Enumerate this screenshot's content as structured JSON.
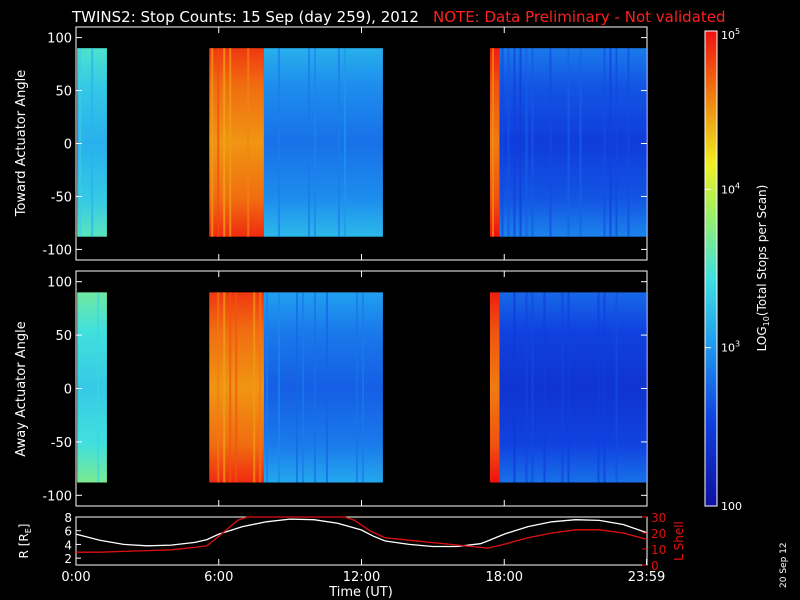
{
  "title": "TWINS2: Stop Counts: 15 Sep (day 259), 2012",
  "note": "NOTE: Data Preliminary - Not validated",
  "datestamp": "20 Sep 12",
  "colors": {
    "background": "#000000",
    "text": "#ffffff",
    "note": "#ff2020",
    "r_line": "#ffffff",
    "lshell_line": "#e01010"
  },
  "colorbar": {
    "label": "LOG",
    "label_sub": "10",
    "label_rest": "(Total Stops per Scan)",
    "ticks": [
      {
        "value": 100,
        "text": "100"
      },
      {
        "value": 1000,
        "text": "10",
        "sup": "3"
      },
      {
        "value": 10000,
        "text": "10",
        "sup": "4"
      },
      {
        "value": 100000,
        "text": "10",
        "sup": "5"
      }
    ],
    "range": [
      100,
      100000
    ],
    "scale": "log",
    "colormap": "rainbow"
  },
  "chart_data": [
    {
      "type": "heatmap",
      "id": "toward",
      "ylabel": "Toward Actuator Angle",
      "ylim": [
        -110,
        110
      ],
      "yticks": [
        -100,
        -50,
        0,
        50,
        100
      ],
      "xlim": [
        0,
        24
      ],
      "data_angle_range": [
        -88,
        90
      ],
      "segments": [
        {
          "start": 0.05,
          "end": 1.3,
          "level": 3.25
        },
        {
          "start": 5.6,
          "end": 7.9,
          "level": 4.6
        },
        {
          "start": 7.9,
          "end": 12.9,
          "level": 2.9
        },
        {
          "start": 17.4,
          "end": 17.8,
          "level": 4.7
        },
        {
          "start": 17.8,
          "end": 23.99,
          "level": 2.6
        }
      ]
    },
    {
      "type": "heatmap",
      "id": "away",
      "ylabel": "Away Actuator Angle",
      "ylim": [
        -110,
        110
      ],
      "yticks": [
        -100,
        -50,
        0,
        50,
        100
      ],
      "xlim": [
        0,
        24
      ],
      "data_angle_range": [
        -88,
        90
      ],
      "segments": [
        {
          "start": 0.05,
          "end": 1.3,
          "level": 3.4
        },
        {
          "start": 5.6,
          "end": 7.9,
          "level": 4.6
        },
        {
          "start": 7.9,
          "end": 12.9,
          "level": 2.8
        },
        {
          "start": 17.4,
          "end": 17.8,
          "level": 4.7
        },
        {
          "start": 17.8,
          "end": 23.99,
          "level": 2.5
        }
      ]
    },
    {
      "type": "line",
      "id": "ephemeris",
      "xlabel": "Time (UT)",
      "xlim": [
        0,
        24
      ],
      "xticks": [
        {
          "value": 0,
          "text": "0:00"
        },
        {
          "value": 6,
          "text": "6:00"
        },
        {
          "value": 12,
          "text": "12:00"
        },
        {
          "value": 18,
          "text": "18:00"
        },
        {
          "value": 23.98,
          "text": "23:59"
        }
      ],
      "ylabel_left": "R [R",
      "ylabel_left_sub": "E",
      "ylabel_left_end": "]",
      "ylim_left": [
        1,
        8
      ],
      "yticks_left": [
        2,
        4,
        6,
        8
      ],
      "ylabel_right": "L Shell",
      "ylim_right": [
        0,
        30
      ],
      "yticks_right": [
        10,
        20,
        30
      ],
      "series": [
        {
          "axis": "left",
          "x": [
            0,
            1,
            2,
            3,
            4,
            5,
            5.5,
            6,
            7,
            8,
            9,
            10,
            11,
            12,
            12.5,
            13,
            14,
            15,
            16,
            17,
            17.3,
            18,
            19,
            20,
            21,
            22,
            23,
            24
          ],
          "y": [
            5.5,
            4.6,
            4.0,
            3.8,
            3.9,
            4.3,
            4.7,
            5.5,
            6.6,
            7.3,
            7.7,
            7.6,
            7.1,
            6.1,
            5.2,
            4.5,
            4.0,
            3.7,
            3.7,
            4.1,
            4.5,
            5.5,
            6.6,
            7.3,
            7.6,
            7.5,
            6.9,
            5.7
          ]
        },
        {
          "axis": "right",
          "x": [
            0,
            1,
            2,
            3,
            4,
            5,
            5.5,
            6,
            6.8,
            7.2,
            11.3,
            11.7,
            12.4,
            13,
            14,
            15,
            16,
            17,
            17.3,
            18,
            19,
            20,
            21,
            22,
            23,
            24
          ],
          "y": [
            8,
            8,
            8.5,
            9,
            9.5,
            11,
            12,
            18,
            28,
            30,
            30,
            28,
            21,
            17,
            15.5,
            14,
            12.5,
            11,
            10.5,
            13,
            17,
            20,
            22,
            22,
            20,
            16
          ]
        }
      ]
    }
  ]
}
